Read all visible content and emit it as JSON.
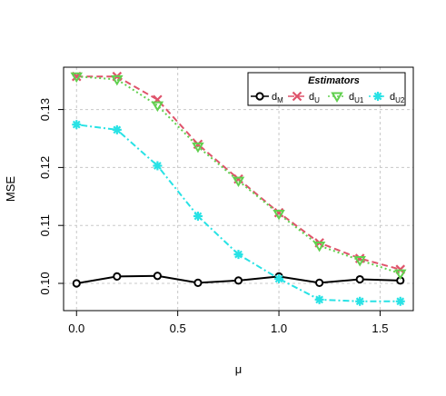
{
  "chart_data": {
    "type": "line",
    "title": "",
    "xlabel": "μ",
    "ylabel": "MSE",
    "xlim": [
      -0.064,
      1.664
    ],
    "ylim": [
      0.0953,
      0.1373
    ],
    "x_ticks": [
      0.0,
      0.5,
      1.0,
      1.5
    ],
    "x_tick_labels": [
      "0.0",
      "0.5",
      "1.0",
      "1.5"
    ],
    "y_ticks": [
      0.1,
      0.11,
      0.12,
      0.13
    ],
    "y_tick_labels": [
      "0.10",
      "0.11",
      "0.12",
      "0.13"
    ],
    "grid": true,
    "legend": {
      "title": "Estimators",
      "placement": "top-right"
    },
    "x": [
      0.0,
      0.2,
      0.4,
      0.6,
      0.8,
      1.0,
      1.2,
      1.4,
      1.6
    ],
    "series": [
      {
        "name": "dM",
        "name_base": "d",
        "name_sub": "M",
        "color": "#000000",
        "line_style": "solid",
        "marker": "circle",
        "values": [
          0.1,
          0.1012,
          0.1013,
          0.1001,
          0.1005,
          0.1012,
          0.1001,
          0.1007,
          0.1005
        ]
      },
      {
        "name": "dU",
        "name_base": "d",
        "name_sub": "U",
        "color": "#DF536B",
        "line_style": "dashed",
        "marker": "x",
        "values": [
          0.1357,
          0.1357,
          0.1317,
          0.124,
          0.118,
          0.1122,
          0.107,
          0.1043,
          0.1024
        ]
      },
      {
        "name": "dU1",
        "name_base": "d",
        "name_sub": "U1",
        "color": "#61D04F",
        "line_style": "dotted",
        "marker": "triangle-down",
        "values": [
          0.1357,
          0.1352,
          0.1307,
          0.1236,
          0.1177,
          0.112,
          0.1065,
          0.104,
          0.1017
        ]
      },
      {
        "name": "dU2",
        "name_base": "d",
        "name_sub": "U2",
        "color": "#28E2E5",
        "line_style": "dotdash",
        "marker": "asterisk",
        "values": [
          0.1274,
          0.1265,
          0.1203,
          0.1116,
          0.105,
          0.1008,
          0.0972,
          0.0969,
          0.0969
        ]
      }
    ]
  }
}
